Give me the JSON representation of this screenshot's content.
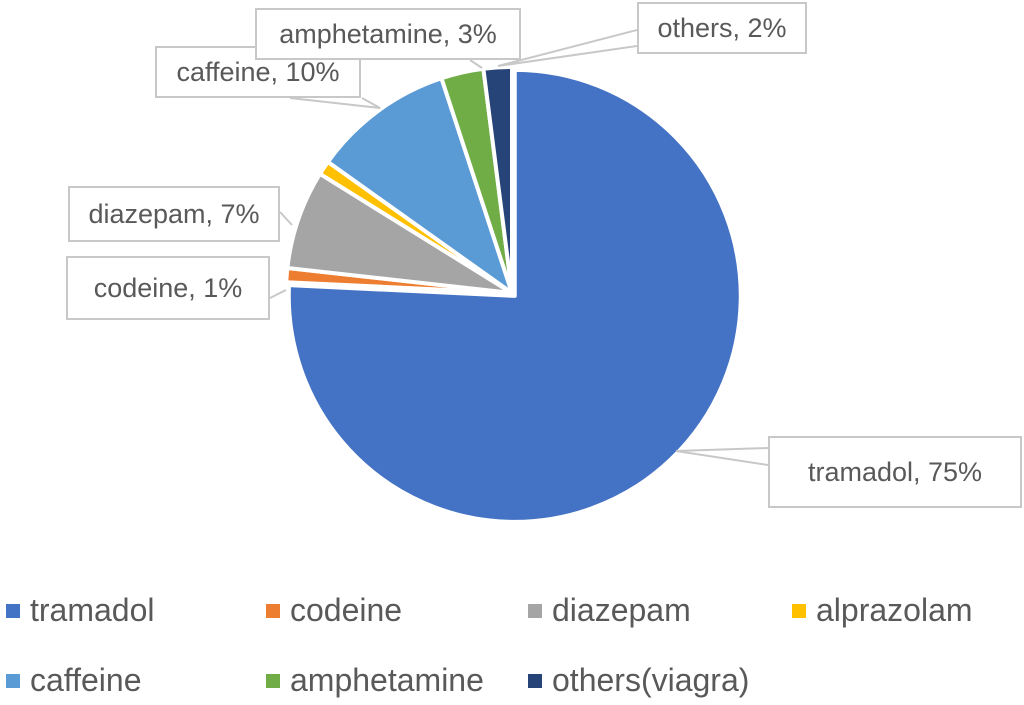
{
  "chart_data": {
    "type": "pie",
    "title": "",
    "start_angle_deg": 0,
    "direction": "clockwise",
    "slices": [
      {
        "name": "tramadol",
        "value": 75,
        "label": "tramadol, 75%",
        "color": "#4472C4"
      },
      {
        "name": "codeine",
        "value": 1,
        "label": "codeine, 1%",
        "color": "#ED7D31"
      },
      {
        "name": "diazepam",
        "value": 7,
        "label": "diazepam, 7%",
        "color": "#A5A5A5"
      },
      {
        "name": "alprazolam",
        "value": 1,
        "label": "",
        "color": "#FFC000"
      },
      {
        "name": "caffeine",
        "value": 10,
        "label": "caffeine, 10%",
        "color": "#5B9BD5"
      },
      {
        "name": "amphetamine",
        "value": 3,
        "label": "amphetamine, 3%",
        "color": "#70AD47"
      },
      {
        "name": "others",
        "value": 2,
        "label": "others, 2%",
        "color": "#264478"
      }
    ],
    "legend": {
      "position": "bottom",
      "entries": [
        {
          "label": "tramadol",
          "color": "#4472C4"
        },
        {
          "label": "codeine",
          "color": "#ED7D31"
        },
        {
          "label": "diazepam",
          "color": "#A5A5A5"
        },
        {
          "label": "alprazolam",
          "color": "#FFC000"
        },
        {
          "label": "caffeine",
          "color": "#5B9BD5"
        },
        {
          "label": "amphetamine",
          "color": "#70AD47"
        },
        {
          "label": "others(viagra)",
          "color": "#264478"
        }
      ]
    }
  }
}
